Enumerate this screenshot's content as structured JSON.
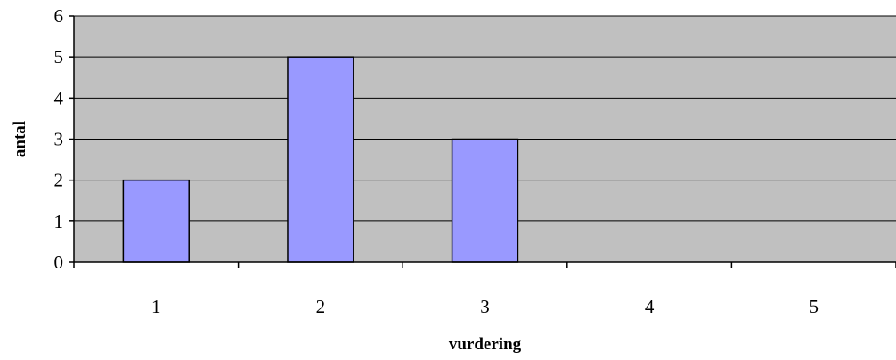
{
  "chart_data": {
    "type": "bar",
    "categories": [
      "1",
      "2",
      "3",
      "4",
      "5"
    ],
    "values": [
      2,
      5,
      3,
      0,
      0
    ],
    "title": "",
    "xlabel": "vurdering",
    "ylabel": "antal",
    "ylim": [
      0,
      6
    ],
    "yticks": [
      "0",
      "1",
      "2",
      "3",
      "4",
      "5",
      "6"
    ],
    "grid": true,
    "legend": "none",
    "colors": {
      "plot_background": "#c0c0c0",
      "bar_fill": "#9999ff",
      "bar_stroke": "#000000",
      "gridline": "#000000"
    }
  }
}
